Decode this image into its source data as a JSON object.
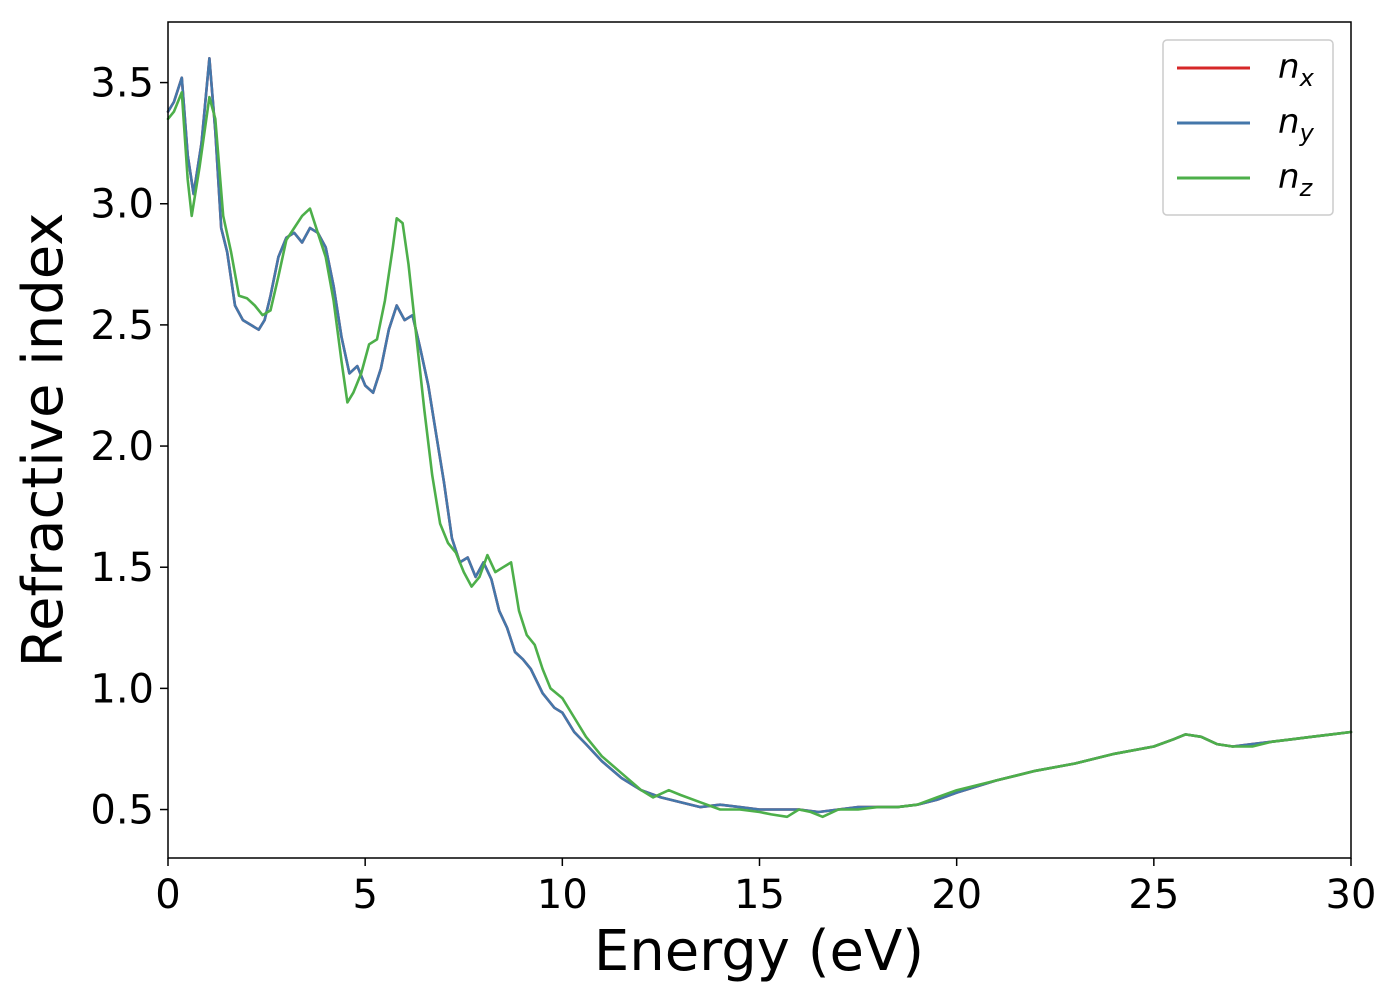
{
  "chart_data": {
    "type": "line",
    "title": "",
    "xlabel": "Energy (eV)",
    "ylabel": "Refractive index",
    "xlim": [
      0,
      30
    ],
    "ylim": [
      0.3,
      3.75
    ],
    "xticks": [
      0,
      5,
      10,
      15,
      20,
      25,
      30
    ],
    "xtick_labels": [
      "0",
      "5",
      "10",
      "15",
      "20",
      "25",
      "30"
    ],
    "yticks": [
      0.5,
      1.0,
      1.5,
      2.0,
      2.5,
      3.0,
      3.5
    ],
    "ytick_labels": [
      "0.5",
      "1.0",
      "1.5",
      "2.0",
      "2.5",
      "3.0",
      "3.5"
    ],
    "grid": false,
    "legend_position": "top-right",
    "series": [
      {
        "name": "n",
        "subscript": "x",
        "color": "#d62728",
        "x": [
          0,
          0.15,
          0.35,
          0.5,
          0.65,
          0.85,
          1.05,
          1.2,
          1.35,
          1.5,
          1.7,
          1.9,
          2.1,
          2.3,
          2.45,
          2.6,
          2.8,
          3.0,
          3.2,
          3.4,
          3.6,
          3.8,
          4.0,
          4.2,
          4.4,
          4.6,
          4.8,
          5.0,
          5.2,
          5.4,
          5.6,
          5.8,
          6.0,
          6.2,
          6.4,
          6.6,
          6.8,
          7.0,
          7.2,
          7.4,
          7.6,
          7.8,
          8.0,
          8.2,
          8.4,
          8.6,
          8.8,
          9.0,
          9.2,
          9.5,
          9.8,
          10.0,
          10.3,
          10.6,
          11.0,
          11.5,
          12.0,
          12.5,
          13.0,
          13.5,
          14.0,
          14.5,
          15.0,
          15.5,
          16.0,
          16.5,
          17.0,
          17.5,
          18.0,
          18.5,
          19.0,
          19.5,
          20.0,
          21.0,
          22.0,
          23.0,
          24.0,
          25.0,
          25.5,
          25.8,
          26.2,
          26.6,
          27.0,
          27.5,
          28.0,
          28.5,
          29.0,
          29.5,
          30.0
        ],
        "y": [
          3.38,
          3.42,
          3.52,
          3.2,
          3.04,
          3.25,
          3.6,
          3.3,
          2.9,
          2.8,
          2.58,
          2.52,
          2.5,
          2.48,
          2.52,
          2.62,
          2.78,
          2.86,
          2.88,
          2.84,
          2.9,
          2.88,
          2.82,
          2.66,
          2.45,
          2.3,
          2.33,
          2.25,
          2.22,
          2.32,
          2.48,
          2.58,
          2.52,
          2.54,
          2.4,
          2.25,
          2.05,
          1.85,
          1.62,
          1.52,
          1.54,
          1.46,
          1.52,
          1.45,
          1.32,
          1.25,
          1.15,
          1.12,
          1.08,
          0.98,
          0.92,
          0.9,
          0.82,
          0.77,
          0.7,
          0.63,
          0.58,
          0.55,
          0.53,
          0.51,
          0.52,
          0.51,
          0.5,
          0.5,
          0.5,
          0.49,
          0.5,
          0.51,
          0.51,
          0.51,
          0.52,
          0.54,
          0.57,
          0.62,
          0.66,
          0.69,
          0.73,
          0.76,
          0.79,
          0.81,
          0.8,
          0.77,
          0.76,
          0.77,
          0.78,
          0.79,
          0.8,
          0.81,
          0.82
        ]
      },
      {
        "name": "n",
        "subscript": "y",
        "color": "#4477aa",
        "x": [
          0,
          0.15,
          0.35,
          0.5,
          0.65,
          0.85,
          1.05,
          1.2,
          1.35,
          1.5,
          1.7,
          1.9,
          2.1,
          2.3,
          2.45,
          2.6,
          2.8,
          3.0,
          3.2,
          3.4,
          3.6,
          3.8,
          4.0,
          4.2,
          4.4,
          4.6,
          4.8,
          5.0,
          5.2,
          5.4,
          5.6,
          5.8,
          6.0,
          6.2,
          6.4,
          6.6,
          6.8,
          7.0,
          7.2,
          7.4,
          7.6,
          7.8,
          8.0,
          8.2,
          8.4,
          8.6,
          8.8,
          9.0,
          9.2,
          9.5,
          9.8,
          10.0,
          10.3,
          10.6,
          11.0,
          11.5,
          12.0,
          12.5,
          13.0,
          13.5,
          14.0,
          14.5,
          15.0,
          15.5,
          16.0,
          16.5,
          17.0,
          17.5,
          18.0,
          18.5,
          19.0,
          19.5,
          20.0,
          21.0,
          22.0,
          23.0,
          24.0,
          25.0,
          25.5,
          25.8,
          26.2,
          26.6,
          27.0,
          27.5,
          28.0,
          28.5,
          29.0,
          29.5,
          30.0
        ],
        "y": [
          3.38,
          3.42,
          3.52,
          3.2,
          3.04,
          3.25,
          3.6,
          3.3,
          2.9,
          2.8,
          2.58,
          2.52,
          2.5,
          2.48,
          2.52,
          2.62,
          2.78,
          2.86,
          2.88,
          2.84,
          2.9,
          2.88,
          2.82,
          2.66,
          2.45,
          2.3,
          2.33,
          2.25,
          2.22,
          2.32,
          2.48,
          2.58,
          2.52,
          2.54,
          2.4,
          2.25,
          2.05,
          1.85,
          1.62,
          1.52,
          1.54,
          1.46,
          1.52,
          1.45,
          1.32,
          1.25,
          1.15,
          1.12,
          1.08,
          0.98,
          0.92,
          0.9,
          0.82,
          0.77,
          0.7,
          0.63,
          0.58,
          0.55,
          0.53,
          0.51,
          0.52,
          0.51,
          0.5,
          0.5,
          0.5,
          0.49,
          0.5,
          0.51,
          0.51,
          0.51,
          0.52,
          0.54,
          0.57,
          0.62,
          0.66,
          0.69,
          0.73,
          0.76,
          0.79,
          0.81,
          0.8,
          0.77,
          0.76,
          0.77,
          0.78,
          0.79,
          0.8,
          0.81,
          0.82
        ]
      },
      {
        "name": "n",
        "subscript": "z",
        "color": "#4daf4a",
        "x": [
          0,
          0.15,
          0.35,
          0.5,
          0.6,
          0.8,
          1.05,
          1.2,
          1.4,
          1.6,
          1.8,
          2.0,
          2.2,
          2.4,
          2.6,
          2.8,
          3.0,
          3.2,
          3.4,
          3.6,
          3.8,
          4.0,
          4.2,
          4.4,
          4.55,
          4.7,
          4.9,
          5.1,
          5.3,
          5.5,
          5.7,
          5.8,
          5.95,
          6.1,
          6.3,
          6.5,
          6.7,
          6.9,
          7.1,
          7.3,
          7.5,
          7.7,
          7.9,
          8.1,
          8.3,
          8.5,
          8.7,
          8.9,
          9.1,
          9.3,
          9.5,
          9.7,
          10.0,
          10.3,
          10.6,
          11.0,
          11.5,
          12.0,
          12.3,
          12.7,
          13.0,
          13.5,
          14.0,
          14.5,
          15.0,
          15.3,
          15.7,
          16.0,
          16.3,
          16.6,
          17.0,
          17.5,
          18.0,
          18.5,
          19.0,
          19.5,
          20.0,
          21.0,
          22.0,
          23.0,
          24.0,
          25.0,
          25.5,
          25.8,
          26.2,
          26.6,
          27.0,
          27.5,
          28.0,
          28.5,
          29.0,
          29.5,
          30.0
        ],
        "y": [
          3.35,
          3.38,
          3.46,
          3.1,
          2.95,
          3.15,
          3.44,
          3.35,
          2.95,
          2.8,
          2.62,
          2.61,
          2.58,
          2.54,
          2.56,
          2.7,
          2.85,
          2.9,
          2.95,
          2.98,
          2.88,
          2.78,
          2.6,
          2.35,
          2.18,
          2.22,
          2.3,
          2.42,
          2.44,
          2.6,
          2.82,
          2.94,
          2.92,
          2.75,
          2.45,
          2.15,
          1.88,
          1.68,
          1.6,
          1.56,
          1.48,
          1.42,
          1.46,
          1.55,
          1.48,
          1.5,
          1.52,
          1.32,
          1.22,
          1.18,
          1.08,
          1.0,
          0.96,
          0.88,
          0.8,
          0.72,
          0.65,
          0.58,
          0.55,
          0.58,
          0.56,
          0.53,
          0.5,
          0.5,
          0.49,
          0.48,
          0.47,
          0.5,
          0.49,
          0.47,
          0.5,
          0.5,
          0.51,
          0.51,
          0.52,
          0.55,
          0.58,
          0.62,
          0.66,
          0.69,
          0.73,
          0.76,
          0.79,
          0.81,
          0.8,
          0.77,
          0.76,
          0.76,
          0.78,
          0.79,
          0.8,
          0.81,
          0.82
        ]
      }
    ]
  }
}
